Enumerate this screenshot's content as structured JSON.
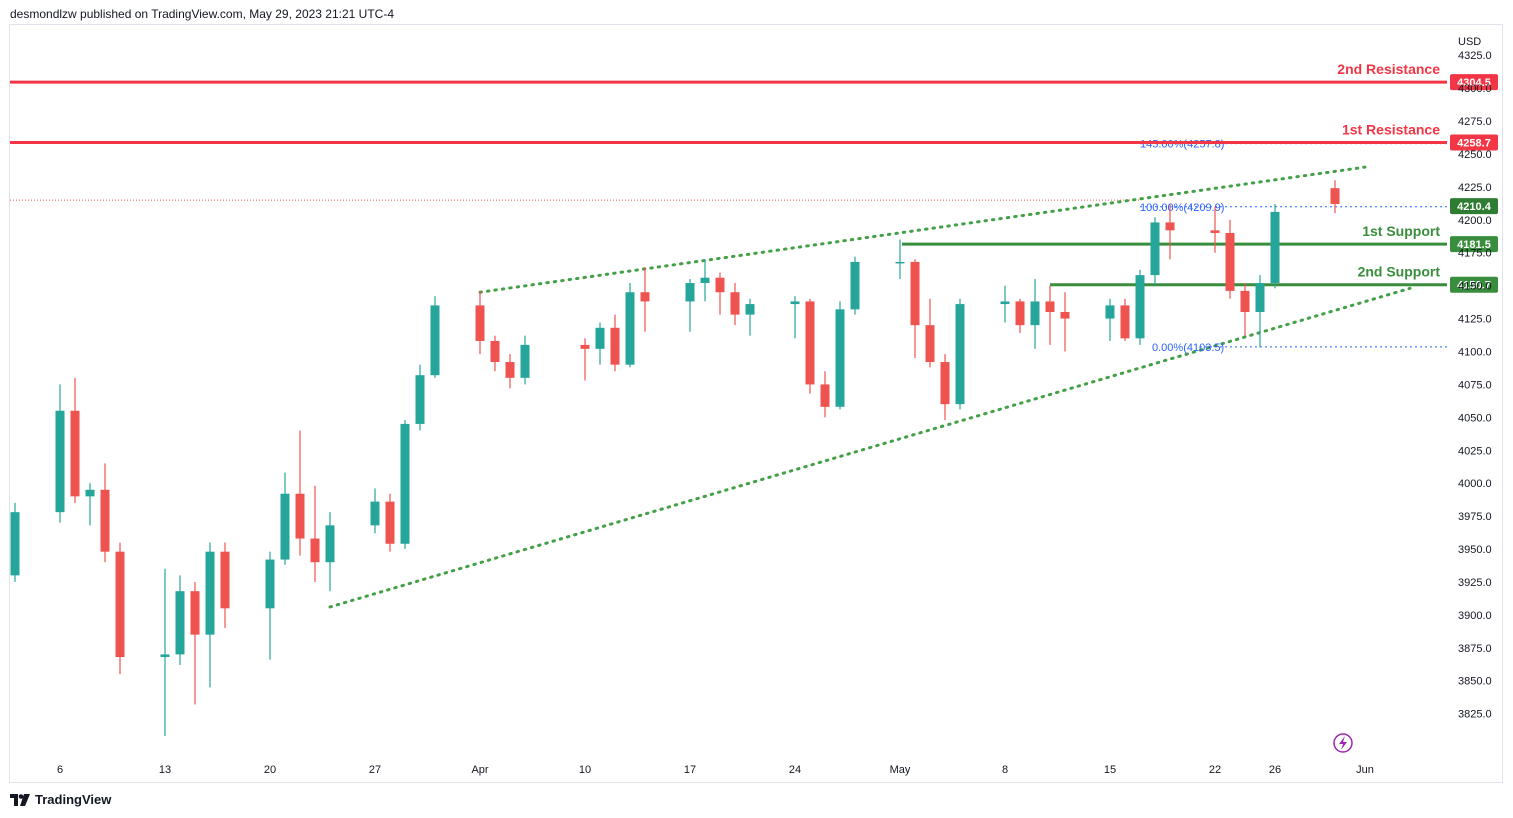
{
  "header": {
    "publisher_line": "desmondlzw published on TradingView.com, May 29, 2023 21:21 UTC-4"
  },
  "footer": {
    "brand_label": "TradingView",
    "logo_icon": "tradingview-logo-icon"
  },
  "colors": {
    "bull": "#26a69a",
    "bear": "#ef5350",
    "resistance": "#f23645",
    "support": "#388e3c",
    "channel": "#43a047",
    "fib": "#2962ff",
    "lightning": "#9c27b0"
  },
  "chart_data": {
    "type": "candlestick",
    "currency": "USD",
    "y_range": [
      3805,
      4335
    ],
    "y_ticks": [
      3825,
      3850,
      3875,
      3900,
      3925,
      3950,
      3975,
      4000,
      4025,
      4050,
      4075,
      4100,
      4125,
      4150,
      4175,
      4200,
      4225,
      4250,
      4275,
      4300,
      4325
    ],
    "y_tick_labels": [
      "3825.0",
      "3850.0",
      "3875.0",
      "3900.0",
      "3925.0",
      "3950.0",
      "3975.0",
      "4000.0",
      "4025.0",
      "4050.0",
      "4075.0",
      "4100.0",
      "4125.0",
      "4150.0",
      "4175.0",
      "4200.0",
      "4225.0",
      "4250.0",
      "4275.0",
      "4300.0",
      "4325.0"
    ],
    "x_range": [
      "2023-03-03",
      "2023-06-04"
    ],
    "x_ticks": [
      {
        "date": "2023-03-06",
        "label": "6"
      },
      {
        "date": "2023-03-13",
        "label": "13"
      },
      {
        "date": "2023-03-20",
        "label": "20"
      },
      {
        "date": "2023-03-27",
        "label": "27"
      },
      {
        "date": "2023-04-03",
        "label": "Apr"
      },
      {
        "date": "2023-04-10",
        "label": "10"
      },
      {
        "date": "2023-04-17",
        "label": "17"
      },
      {
        "date": "2023-04-24",
        "label": "24"
      },
      {
        "date": "2023-05-01",
        "label": "May"
      },
      {
        "date": "2023-05-08",
        "label": "8"
      },
      {
        "date": "2023-05-15",
        "label": "15"
      },
      {
        "date": "2023-05-22",
        "label": "22"
      },
      {
        "date": "2023-05-26",
        "label": "26"
      },
      {
        "date": "2023-06-01",
        "label": "Jun"
      }
    ],
    "candles": [
      {
        "t": "2023-03-03",
        "o": 3930,
        "h": 3985,
        "l": 3925,
        "c": 3978
      },
      {
        "t": "2023-03-06",
        "o": 3978,
        "h": 4075,
        "l": 3970,
        "c": 4055
      },
      {
        "t": "2023-03-07",
        "o": 4055,
        "h": 4080,
        "l": 3985,
        "c": 3990
      },
      {
        "t": "2023-03-08",
        "o": 3990,
        "h": 4000,
        "l": 3968,
        "c": 3995
      },
      {
        "t": "2023-03-09",
        "o": 3995,
        "h": 4015,
        "l": 3940,
        "c": 3948
      },
      {
        "t": "2023-03-10",
        "o": 3948,
        "h": 3955,
        "l": 3855,
        "c": 3868
      },
      {
        "t": "2023-03-13",
        "o": 3868,
        "h": 3935,
        "l": 3808,
        "c": 3870
      },
      {
        "t": "2023-03-14",
        "o": 3870,
        "h": 3930,
        "l": 3862,
        "c": 3918
      },
      {
        "t": "2023-03-15",
        "o": 3918,
        "h": 3925,
        "l": 3832,
        "c": 3885
      },
      {
        "t": "2023-03-16",
        "o": 3885,
        "h": 3955,
        "l": 3845,
        "c": 3948
      },
      {
        "t": "2023-03-17",
        "o": 3948,
        "h": 3955,
        "l": 3890,
        "c": 3905
      },
      {
        "t": "2023-03-20",
        "o": 3905,
        "h": 3948,
        "l": 3866,
        "c": 3942
      },
      {
        "t": "2023-03-21",
        "o": 3942,
        "h": 4008,
        "l": 3938,
        "c": 3992
      },
      {
        "t": "2023-03-22",
        "o": 3992,
        "h": 4040,
        "l": 3945,
        "c": 3958
      },
      {
        "t": "2023-03-23",
        "o": 3958,
        "h": 3998,
        "l": 3925,
        "c": 3940
      },
      {
        "t": "2023-03-24",
        "o": 3940,
        "h": 3978,
        "l": 3918,
        "c": 3968
      },
      {
        "t": "2023-03-27",
        "o": 3968,
        "h": 3996,
        "l": 3962,
        "c": 3986
      },
      {
        "t": "2023-03-28",
        "o": 3986,
        "h": 3992,
        "l": 3948,
        "c": 3954
      },
      {
        "t": "2023-03-29",
        "o": 3954,
        "h": 4048,
        "l": 3950,
        "c": 4045
      },
      {
        "t": "2023-03-30",
        "o": 4045,
        "h": 4090,
        "l": 4040,
        "c": 4082
      },
      {
        "t": "2023-03-31",
        "o": 4082,
        "h": 4142,
        "l": 4080,
        "c": 4135
      },
      {
        "t": "2023-04-03",
        "o": 4135,
        "h": 4146,
        "l": 4098,
        "c": 4108
      },
      {
        "t": "2023-04-04",
        "o": 4108,
        "h": 4112,
        "l": 4085,
        "c": 4092
      },
      {
        "t": "2023-04-05",
        "o": 4092,
        "h": 4098,
        "l": 4072,
        "c": 4080
      },
      {
        "t": "2023-04-06",
        "o": 4080,
        "h": 4112,
        "l": 4075,
        "c": 4105
      },
      {
        "t": "2023-04-10",
        "o": 4105,
        "h": 4110,
        "l": 4078,
        "c": 4102
      },
      {
        "t": "2023-04-11",
        "o": 4102,
        "h": 4122,
        "l": 4090,
        "c": 4118
      },
      {
        "t": "2023-04-12",
        "o": 4118,
        "h": 4128,
        "l": 4085,
        "c": 4090
      },
      {
        "t": "2023-04-13",
        "o": 4090,
        "h": 4152,
        "l": 4088,
        "c": 4145
      },
      {
        "t": "2023-04-14",
        "o": 4145,
        "h": 4164,
        "l": 4115,
        "c": 4138
      },
      {
        "t": "2023-04-17",
        "o": 4138,
        "h": 4155,
        "l": 4115,
        "c": 4152
      },
      {
        "t": "2023-04-18",
        "o": 4152,
        "h": 4170,
        "l": 4138,
        "c": 4156
      },
      {
        "t": "2023-04-19",
        "o": 4156,
        "h": 4160,
        "l": 4128,
        "c": 4145
      },
      {
        "t": "2023-04-20",
        "o": 4145,
        "h": 4152,
        "l": 4120,
        "c": 4128
      },
      {
        "t": "2023-04-21",
        "o": 4128,
        "h": 4140,
        "l": 4112,
        "c": 4136
      },
      {
        "t": "2023-04-24",
        "o": 4136,
        "h": 4142,
        "l": 4110,
        "c": 4138
      },
      {
        "t": "2023-04-25",
        "o": 4138,
        "h": 4140,
        "l": 4068,
        "c": 4075
      },
      {
        "t": "2023-04-26",
        "o": 4075,
        "h": 4085,
        "l": 4050,
        "c": 4058
      },
      {
        "t": "2023-04-27",
        "o": 4058,
        "h": 4138,
        "l": 4056,
        "c": 4132
      },
      {
        "t": "2023-04-28",
        "o": 4132,
        "h": 4172,
        "l": 4128,
        "c": 4168
      },
      {
        "t": "2023-05-01",
        "o": 4168,
        "h": 4185,
        "l": 4155,
        "c": 4168
      },
      {
        "t": "2023-05-02",
        "o": 4168,
        "h": 4170,
        "l": 4095,
        "c": 4120
      },
      {
        "t": "2023-05-03",
        "o": 4120,
        "h": 4140,
        "l": 4088,
        "c": 4092
      },
      {
        "t": "2023-05-04",
        "o": 4092,
        "h": 4098,
        "l": 4048,
        "c": 4060
      },
      {
        "t": "2023-05-05",
        "o": 4060,
        "h": 4140,
        "l": 4056,
        "c": 4136
      },
      {
        "t": "2023-05-08",
        "o": 4136,
        "h": 4150,
        "l": 4122,
        "c": 4138
      },
      {
        "t": "2023-05-09",
        "o": 4138,
        "h": 4140,
        "l": 4114,
        "c": 4120
      },
      {
        "t": "2023-05-10",
        "o": 4120,
        "h": 4155,
        "l": 4102,
        "c": 4138
      },
      {
        "t": "2023-05-11",
        "o": 4138,
        "h": 4150,
        "l": 4105,
        "c": 4130
      },
      {
        "t": "2023-05-12",
        "o": 4130,
        "h": 4145,
        "l": 4100,
        "c": 4125
      },
      {
        "t": "2023-05-15",
        "o": 4125,
        "h": 4140,
        "l": 4108,
        "c": 4135
      },
      {
        "t": "2023-05-16",
        "o": 4135,
        "h": 4140,
        "l": 4108,
        "c": 4110
      },
      {
        "t": "2023-05-17",
        "o": 4110,
        "h": 4162,
        "l": 4105,
        "c": 4158
      },
      {
        "t": "2023-05-18",
        "o": 4158,
        "h": 4202,
        "l": 4150,
        "c": 4198
      },
      {
        "t": "2023-05-19",
        "o": 4198,
        "h": 4212,
        "l": 4170,
        "c": 4192
      },
      {
        "t": "2023-05-22",
        "o": 4192,
        "h": 4210,
        "l": 4175,
        "c": 4190
      },
      {
        "t": "2023-05-23",
        "o": 4190,
        "h": 4200,
        "l": 4140,
        "c": 4146
      },
      {
        "t": "2023-05-24",
        "o": 4146,
        "h": 4152,
        "l": 4112,
        "c": 4130
      },
      {
        "t": "2023-05-25",
        "o": 4130,
        "h": 4158,
        "l": 4103,
        "c": 4152
      },
      {
        "t": "2023-05-26",
        "o": 4152,
        "h": 4212,
        "l": 4148,
        "c": 4206
      },
      {
        "t": "2023-05-30",
        "o": 4224,
        "h": 4230,
        "l": 4205,
        "c": 4212
      }
    ],
    "levels": [
      {
        "name": "2nd Resistance",
        "value": 4304.5,
        "label": "4304.5",
        "kind": "resistance"
      },
      {
        "name": "1st Resistance",
        "value": 4258.7,
        "label": "4258.7",
        "kind": "resistance"
      },
      {
        "name": "1st Support",
        "value": 4181.5,
        "label": "4181.5",
        "kind": "support"
      },
      {
        "name": "2nd Support",
        "value": 4150.7,
        "label": "4150.7",
        "kind": "support"
      }
    ],
    "current_price": {
      "value": 4210.4,
      "label": "4210.4"
    },
    "fib_levels": [
      {
        "label": "145.00%(4257.8)",
        "value": 4257.8
      },
      {
        "label": "100.00%(4209.9)",
        "value": 4209.9
      },
      {
        "label": "0.00%(4103.5)",
        "value": 4103.5
      }
    ],
    "channel_lines": [
      {
        "from": {
          "t": "2023-04-03",
          "p": 4145
        },
        "to": {
          "t": "2023-06-01",
          "p": 4240
        }
      },
      {
        "from": {
          "t": "2023-03-24",
          "p": 3906
        },
        "to": {
          "t": "2023-06-04",
          "p": 4148
        }
      }
    ]
  }
}
